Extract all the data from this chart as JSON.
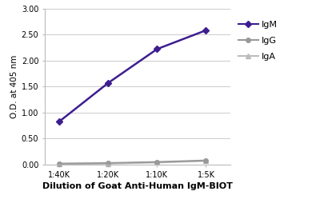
{
  "x_positions": [
    1,
    2,
    3,
    4
  ],
  "x_labels": [
    "1:40K",
    "1:20K",
    "1:10K",
    "1:5K"
  ],
  "series": [
    {
      "label": "IgM",
      "y": [
        0.83,
        1.57,
        2.22,
        2.58
      ],
      "color": "#3d1e8f",
      "marker": "D",
      "markersize": 4,
      "linewidth": 1.8,
      "zorder": 3
    },
    {
      "label": "IgG",
      "y": [
        0.02,
        0.03,
        0.05,
        0.08
      ],
      "color": "#999999",
      "marker": "o",
      "markersize": 4,
      "linewidth": 1.5,
      "zorder": 2
    },
    {
      "label": "IgA",
      "y": [
        0.01,
        0.02,
        0.04,
        0.07
      ],
      "color": "#bbbbbb",
      "marker": "^",
      "markersize": 4,
      "linewidth": 1.5,
      "zorder": 1
    }
  ],
  "ylabel": "O.D. at 405 nm",
  "xlabel": "Dilution of Goat Anti-Human IgM-BIOT",
  "ylim": [
    0.0,
    3.0
  ],
  "yticks": [
    0.0,
    0.5,
    1.0,
    1.5,
    2.0,
    2.5,
    3.0
  ],
  "ylabel_fontsize": 7.5,
  "xlabel_fontsize": 8,
  "tick_fontsize": 7,
  "legend_fontsize": 8,
  "background_color": "#ffffff",
  "grid_color": "#cccccc",
  "spine_color": "#bbbbbb"
}
